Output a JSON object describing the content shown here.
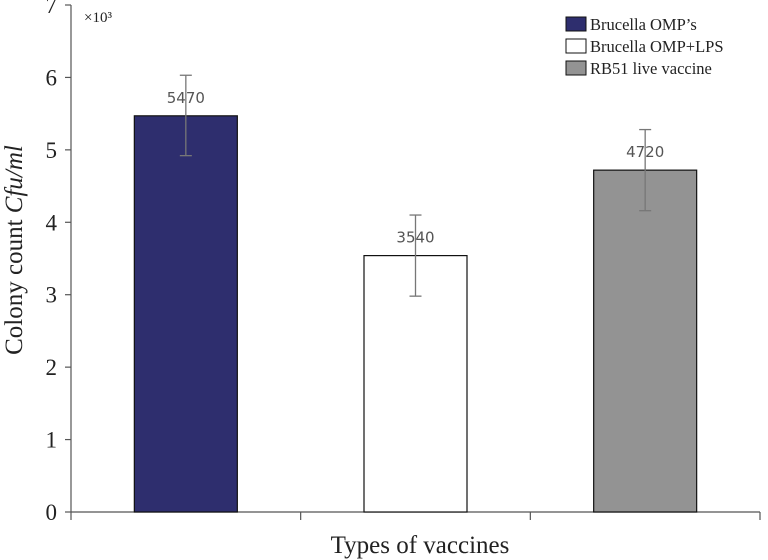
{
  "chart_data": {
    "type": "bar",
    "title": "",
    "xlabel": "Types of vaccines",
    "ylabel_prefix": "Colony count ",
    "ylabel_unit": "Cfu/ml",
    "y_multiplier": "×10³",
    "ylim": [
      0,
      7
    ],
    "yticks": [
      0,
      1,
      2,
      3,
      4,
      5,
      6,
      7
    ],
    "grid": false,
    "legend_position": "top-right",
    "categories": [
      "Brucella OMP’s",
      "Brucella OMP+LPS",
      "RB51 live vaccine"
    ],
    "values": [
      5.47,
      3.54,
      4.72
    ],
    "data_labels": [
      "5470",
      "3540",
      "4720"
    ],
    "error_low": [
      4.92,
      2.98,
      4.16
    ],
    "error_high": [
      6.03,
      4.1,
      5.28
    ],
    "colors": [
      "#2e2e6e",
      "#ffffff",
      "#939393"
    ]
  }
}
